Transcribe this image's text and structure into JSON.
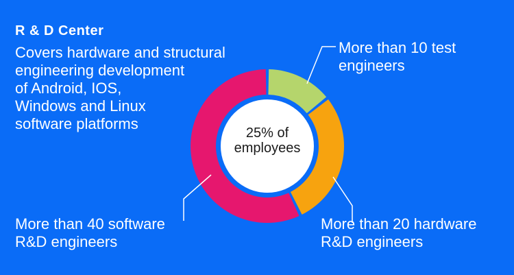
{
  "title": "R & D Center",
  "description": [
    "Covers hardware and structural",
    "engineering development",
    "of Android, IOS,",
    "Windows and Linux",
    "software platforms"
  ],
  "colors": {
    "background": "#0a6cf7",
    "test": "#b5d56c",
    "hardware": "#f7a30f",
    "software": "#e6176e",
    "center": "#ffffff"
  },
  "chart_data": {
    "type": "pie",
    "center_label": [
      "25% of",
      "employees"
    ],
    "categories": [
      [
        "More than 10 test",
        "engineers"
      ],
      [
        "More than 20 hardware",
        "R&D engineers"
      ],
      [
        "More than 40 software",
        "R&D engineers"
      ]
    ],
    "values": [
      10,
      20,
      40
    ],
    "colors": [
      "#b5d56c",
      "#f7a30f",
      "#e6176e"
    ]
  }
}
